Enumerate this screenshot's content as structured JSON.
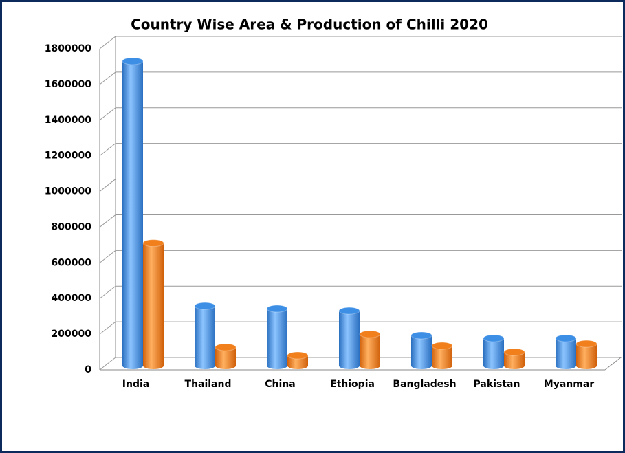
{
  "chart_data": {
    "type": "bar",
    "title": "Country Wise Area & Production of Chilli 2020",
    "categories": [
      "India",
      "Thailand",
      "China",
      "Ethiopia",
      "Bangladesh",
      "Pakistan",
      "Myanmar"
    ],
    "series": [
      {
        "color": "#3d8fe6",
        "values": [
          1700000,
          327000,
          312000,
          300000,
          162000,
          146000,
          146000
        ]
      },
      {
        "color": "#f07f1c",
        "values": [
          680000,
          96000,
          50000,
          169000,
          104000,
          69000,
          115000
        ]
      }
    ],
    "ylim": [
      0,
      1800000
    ],
    "yticks": [
      0,
      200000,
      400000,
      600000,
      800000,
      1000000,
      1200000,
      1400000,
      1600000,
      1800000
    ],
    "grid": true
  }
}
